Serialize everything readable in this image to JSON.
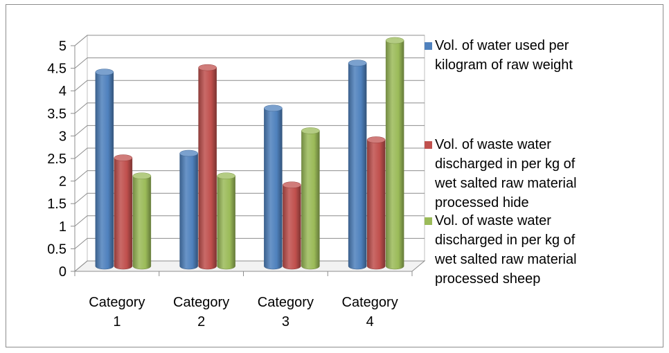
{
  "chart_data": {
    "type": "bar",
    "categories": [
      "Category 1",
      "Category 2",
      "Category 3",
      "Category 4"
    ],
    "category_lines": [
      [
        "Category",
        "1"
      ],
      [
        "Category",
        "2"
      ],
      [
        "Category",
        "3"
      ],
      [
        "Category",
        "4"
      ]
    ],
    "series": [
      {
        "name": "Vol. of water used per kilogram of raw weight",
        "name_lines": [
          "Vol. of water used per",
          "kilogram of raw weight"
        ],
        "values": [
          4.3,
          2.5,
          3.5,
          4.5
        ],
        "color": "#4f81bd"
      },
      {
        "name": "Vol. of waste water discharged in per kg of wet salted raw material processed hide",
        "name_lines": [
          "Vol. of waste water",
          "discharged in per kg of",
          "wet salted raw material",
          "processed hide"
        ],
        "values": [
          2.4,
          4.4,
          1.8,
          2.8
        ],
        "color": "#c0504d"
      },
      {
        "name": "Vol. of waste water discharged in per kg of wet salted raw material processed sheep",
        "name_lines": [
          "Vol. of waste water",
          "discharged in per kg of",
          "wet salted raw material",
          "processed sheep"
        ],
        "values": [
          2.0,
          2.0,
          3.0,
          5.0
        ],
        "color": "#9bbb59"
      }
    ],
    "yticks": [
      "0",
      "0.5",
      "1",
      "1.5",
      "2",
      "2.5",
      "3",
      "3.5",
      "4",
      "4.5",
      "5"
    ],
    "ylim": [
      0,
      5
    ],
    "grid": true,
    "legend_position": "right",
    "style": "3d-cylinder"
  }
}
